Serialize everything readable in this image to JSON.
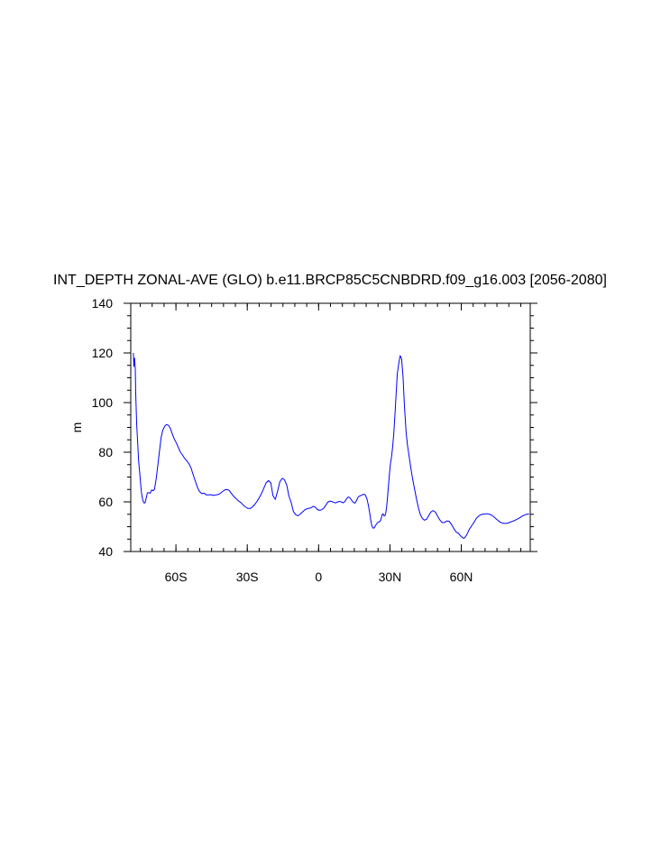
{
  "chart_data": {
    "type": "line",
    "title": "INT_DEPTH ZONAL-AVE (GLO) b.e11.BRCP85C5CNBDRD.f09_g16.003 [2056-2080]",
    "xlabel": "",
    "ylabel": "m",
    "xlim": [
      -79,
      89
    ],
    "ylim": [
      40,
      140
    ],
    "grid": false,
    "x_ticks": [
      {
        "value": -60,
        "label": "60S"
      },
      {
        "value": -30,
        "label": "30S"
      },
      {
        "value": 0,
        "label": "0"
      },
      {
        "value": 30,
        "label": "30N"
      },
      {
        "value": 60,
        "label": "60N"
      }
    ],
    "y_ticks": [
      {
        "value": 40,
        "label": "40"
      },
      {
        "value": 60,
        "label": "60"
      },
      {
        "value": 80,
        "label": "80"
      },
      {
        "value": 100,
        "label": "100"
      },
      {
        "value": 120,
        "label": "120"
      },
      {
        "value": 140,
        "label": "140"
      }
    ],
    "x_minor_step": 5,
    "y_minor_step": 5,
    "series": [
      {
        "color": "#0000ff",
        "x": [
          -77.9,
          -77.7,
          -77.4,
          -77.1,
          -76.9,
          -76.5,
          -76.1,
          -75.7,
          -75.3,
          -74.9,
          -74.5,
          -74.0,
          -73.5,
          -73.0,
          -72.5,
          -72.0,
          -71.4,
          -70.8,
          -70.2,
          -69.6,
          -69.0,
          -68.3,
          -67.6,
          -66.9,
          -66.2,
          -65.5,
          -64.7,
          -63.9,
          -63.1,
          -62.3,
          -61.5,
          -60.7,
          -59.8,
          -59.0,
          -58.1,
          -57.3,
          -56.4,
          -55.5,
          -54.6,
          -53.7,
          -52.8,
          -51.9,
          -50.9,
          -50.0,
          -49.1,
          -48.1,
          -47.2,
          -46.2,
          -45.3,
          -44.3,
          -43.4,
          -42.4,
          -41.4,
          -40.5,
          -39.5,
          -38.5,
          -37.6,
          -36.6,
          -35.6,
          -34.7,
          -33.7,
          -32.7,
          -31.8,
          -30.8,
          -29.8,
          -28.8,
          -27.9,
          -26.9,
          -25.9,
          -25.0,
          -24.0,
          -23.0,
          -22.1,
          -21.1,
          -20.1,
          -19.2,
          -18.2,
          -17.2,
          -16.3,
          -15.3,
          -14.4,
          -13.4,
          -12.5,
          -11.5,
          -10.6,
          -9.7,
          -8.7,
          -7.8,
          -6.9,
          -5.9,
          -5.0,
          -4.1,
          -3.2,
          -2.3,
          -1.4,
          -0.5,
          0.3,
          1.2,
          2.1,
          3.0,
          3.8,
          4.6,
          5.5,
          6.3,
          7.1,
          7.9,
          8.7,
          9.5,
          10.3,
          11.0,
          11.8,
          12.5,
          13.2,
          13.9,
          14.6,
          15.3,
          16.0,
          16.6,
          17.3,
          17.9,
          18.5,
          19.1,
          19.7,
          20.3,
          20.8,
          21.4,
          21.9,
          22.4,
          22.9,
          23.4,
          23.9,
          24.3,
          24.8,
          25.2,
          25.6,
          26.0,
          26.4,
          26.8,
          27.1,
          27.5,
          27.9,
          28.2,
          28.6,
          29.0,
          29.4,
          29.8,
          30.2,
          30.7,
          31.1,
          31.6,
          32.1,
          32.6,
          33.1,
          33.7,
          34.3,
          34.9,
          35.5,
          36.1,
          36.8,
          37.4,
          38.1,
          38.9,
          39.6,
          40.4,
          41.2,
          42.0,
          42.8,
          43.6,
          44.5,
          45.4,
          46.3,
          47.2,
          48.1,
          49.1,
          50.0,
          51.0,
          51.9,
          52.9,
          53.9,
          54.9,
          55.9,
          56.9,
          57.8,
          58.6,
          59.3,
          59.9,
          60.5,
          61.0,
          61.5,
          61.9,
          62.4,
          62.8,
          63.2,
          63.6,
          64.0,
          64.4,
          64.8,
          65.3,
          65.8,
          66.3,
          66.9,
          67.5,
          68.1,
          68.8,
          69.5,
          70.3,
          71.1,
          71.9,
          72.8,
          73.8,
          74.7,
          75.7,
          76.6,
          77.5,
          78.3,
          79.2,
          80.0,
          80.8,
          81.6,
          82.4,
          83.2,
          84.1,
          84.9,
          85.7,
          86.6,
          87.5,
          88.5
        ],
        "y": [
          120.0,
          114.5,
          117.9,
          113.7,
          103.2,
          91.0,
          84.0,
          76.6,
          72.4,
          67.9,
          63.6,
          61.0,
          59.6,
          59.6,
          61.5,
          63.7,
          63.7,
          63.5,
          64.8,
          64.5,
          65.1,
          69.3,
          74.9,
          80.6,
          86.1,
          88.9,
          90.5,
          91.2,
          90.8,
          89.5,
          87.3,
          85.3,
          83.7,
          81.9,
          80.0,
          79.0,
          77.6,
          76.6,
          75.5,
          73.8,
          71.1,
          68.5,
          65.7,
          64.1,
          63.3,
          63.5,
          62.8,
          62.8,
          62.9,
          62.6,
          62.8,
          62.9,
          63.4,
          64.1,
          64.8,
          65.0,
          64.6,
          63.3,
          62.1,
          61.3,
          60.4,
          59.7,
          58.8,
          58.0,
          57.4,
          57.3,
          57.9,
          58.9,
          60.2,
          61.6,
          63.4,
          65.6,
          67.6,
          68.6,
          67.7,
          62.5,
          61.0,
          64.5,
          68.1,
          69.5,
          69.0,
          66.8,
          62.4,
          59.6,
          56.1,
          54.9,
          54.4,
          55.0,
          55.8,
          56.7,
          57.2,
          57.4,
          57.6,
          58.2,
          57.9,
          56.9,
          56.6,
          56.8,
          57.4,
          58.6,
          59.8,
          60.3,
          60.2,
          59.8,
          59.6,
          59.9,
          60.2,
          60.0,
          59.6,
          60.1,
          61.3,
          62.0,
          61.6,
          60.6,
          59.8,
          59.5,
          60.6,
          61.9,
          62.4,
          62.6,
          62.9,
          63.1,
          62.7,
          61.3,
          59.2,
          56.1,
          52.9,
          50.3,
          49.4,
          49.5,
          50.4,
          51.0,
          51.6,
          51.9,
          52.0,
          52.4,
          53.6,
          55.0,
          55.2,
          54.4,
          54.4,
          55.4,
          57.9,
          62.1,
          66.7,
          71.4,
          75.4,
          78.4,
          81.8,
          87.4,
          95.0,
          103.5,
          111.7,
          115.7,
          118.9,
          117.6,
          110.5,
          98.6,
          88.1,
          82.6,
          78.1,
          72.9,
          68.9,
          64.9,
          61.0,
          57.5,
          54.8,
          53.4,
          52.6,
          53.0,
          54.4,
          55.9,
          56.5,
          55.9,
          54.3,
          52.7,
          51.7,
          51.7,
          52.3,
          52.2,
          50.9,
          49.2,
          47.9,
          47.5,
          46.8,
          46.1,
          45.6,
          45.3,
          45.6,
          46.2,
          46.9,
          47.7,
          48.6,
          49.3,
          49.8,
          50.4,
          51.0,
          51.7,
          52.5,
          53.3,
          53.9,
          54.4,
          54.8,
          55.0,
          55.1,
          55.2,
          55.2,
          55.0,
          54.6,
          53.9,
          53.1,
          52.3,
          51.7,
          51.4,
          51.3,
          51.4,
          51.6,
          51.9,
          52.2,
          52.5,
          52.9,
          53.3,
          53.8,
          54.3,
          54.7,
          55.0,
          55.1
        ]
      }
    ]
  }
}
